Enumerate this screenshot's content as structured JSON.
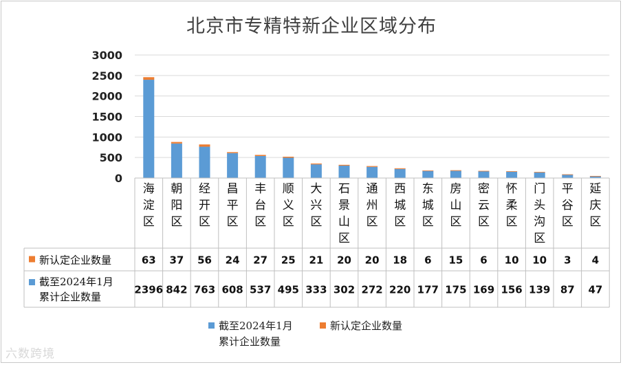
{
  "chart_data": {
    "type": "bar",
    "stacked": true,
    "title": "北京市专精特新企业区域分布",
    "categories": [
      "海淀区",
      "朝阳区",
      "经开区",
      "昌平区",
      "丰台区",
      "顺义区",
      "大兴区",
      "石景山区",
      "通州区",
      "西城区",
      "东城区",
      "房山区",
      "密云区",
      "怀柔区",
      "门头沟区",
      "平谷区",
      "延庆区"
    ],
    "series": [
      {
        "name": "截至2024年1月累计企业数量",
        "name_lines": [
          "截至2024年1月",
          "累计企业数量"
        ],
        "color": "#5b9bd5",
        "values": [
          2396,
          842,
          763,
          608,
          537,
          495,
          333,
          302,
          272,
          220,
          177,
          175,
          169,
          156,
          139,
          87,
          47
        ]
      },
      {
        "name": "新认定企业数量",
        "name_lines": [
          "新认定企业数量"
        ],
        "color": "#ed7d31",
        "values": [
          63,
          37,
          56,
          24,
          27,
          25,
          21,
          20,
          20,
          18,
          6,
          15,
          6,
          10,
          10,
          3,
          4
        ]
      }
    ],
    "ylim": [
      0,
      3000
    ],
    "yticks": [
      0,
      500,
      1000,
      1500,
      2000,
      2500,
      3000
    ],
    "data_table": true,
    "legend": "bottom"
  },
  "watermark": "六数跨境"
}
